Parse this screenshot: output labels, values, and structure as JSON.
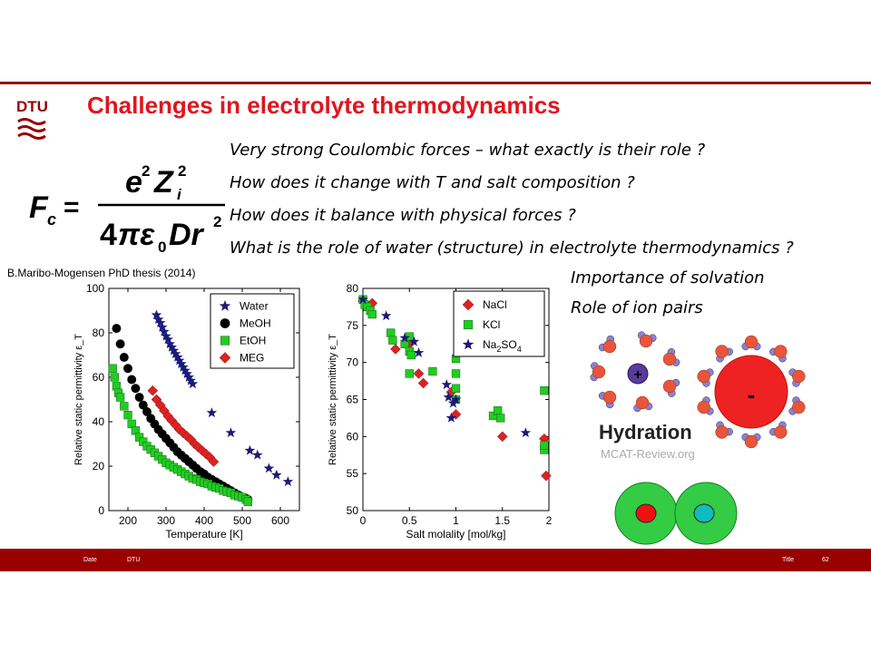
{
  "header": {
    "logo_text": "DTU",
    "title": "Challenges in electrolyte thermodynamics"
  },
  "questions": [
    "Very strong Coulombic forces – what exactly is their role  ?",
    "How does it change with T and salt composition ?",
    "How does it balance with physical forces ?",
    "What is the role of water (structure) in electrolyte thermodynamics ?"
  ],
  "source_note": "B.Maribo-Mogensen PhD thesis (2014)",
  "notes": [
    "Importance of solvation",
    "Role of ion pairs"
  ],
  "hydration": {
    "label": "Hydration",
    "watermark": "MCAT-Review.org",
    "plus": "+",
    "minus": "-",
    "colors": {
      "cation": "#5a3a9a",
      "anion": "#e22222",
      "oxygen": "#e8553a",
      "hydrogen": "#8a80d8"
    }
  },
  "ion_pair": {
    "colors": {
      "outer": "#33cc44",
      "ion1": "#ee1111",
      "ion2": "#11bbbb"
    }
  },
  "footer": {
    "date": "Date",
    "org": "DTU",
    "title": "Title",
    "page": "62"
  },
  "chart_data": [
    {
      "type": "scatter",
      "xlabel": "Temperature [K]",
      "ylabel": "Relative static permittivity ε_T",
      "xlim": [
        150,
        650
      ],
      "ylim": [
        0,
        100
      ],
      "xticks": [
        200,
        300,
        400,
        500,
        600
      ],
      "yticks": [
        0,
        20,
        40,
        60,
        80,
        100
      ],
      "legend_position": "top-right",
      "series": [
        {
          "name": "Water",
          "marker": "star",
          "color": "#1a1a7a",
          "x": [
            275,
            280,
            285,
            290,
            295,
            300,
            305,
            310,
            315,
            320,
            325,
            330,
            335,
            340,
            345,
            350,
            355,
            360,
            365,
            370,
            420,
            470,
            520,
            540,
            570,
            590,
            620
          ],
          "y": [
            88,
            86,
            84.5,
            82.5,
            80.5,
            78.5,
            77,
            75,
            73.5,
            72,
            70.5,
            69,
            67.5,
            66,
            64.5,
            63,
            61.5,
            60,
            58.5,
            57,
            44,
            35,
            27,
            25,
            19,
            16,
            13
          ]
        },
        {
          "name": "MeOH",
          "marker": "circle",
          "color": "#000000",
          "x": [
            170,
            180,
            190,
            200,
            210,
            220,
            230,
            240,
            250,
            260,
            270,
            280,
            290,
            300,
            310,
            320,
            330,
            340,
            350,
            360,
            370,
            380,
            390,
            400,
            410,
            420,
            430,
            440,
            450,
            460,
            470,
            480,
            490,
            500,
            510,
            515
          ],
          "y": [
            82,
            75,
            69,
            64,
            59,
            55,
            51,
            47.5,
            44.5,
            41.5,
            39,
            36.5,
            34.5,
            32.5,
            30.5,
            28.5,
            26.5,
            25,
            23.5,
            22,
            20.5,
            19,
            17.5,
            16.5,
            15,
            14,
            13,
            12,
            11,
            10,
            9,
            8,
            7,
            6,
            5.5,
            5
          ]
        },
        {
          "name": "EtOH",
          "marker": "square",
          "color": "#22cc22",
          "x": [
            160,
            165,
            170,
            175,
            180,
            190,
            200,
            210,
            220,
            230,
            240,
            250,
            260,
            270,
            280,
            290,
            300,
            310,
            320,
            330,
            340,
            350,
            360,
            370,
            380,
            390,
            400,
            410,
            420,
            430,
            440,
            450,
            460,
            470,
            480,
            490,
            500,
            510,
            515
          ],
          "y": [
            64,
            60,
            56,
            53,
            51,
            47,
            43,
            39,
            36,
            33,
            31,
            29,
            27.5,
            26,
            24.5,
            23,
            21.5,
            20.5,
            19.5,
            18.5,
            17.5,
            16.5,
            15.5,
            14.5,
            14,
            13,
            12.5,
            12,
            11,
            10.5,
            10,
            9,
            8.5,
            8,
            7,
            6.5,
            6,
            5,
            4
          ]
        },
        {
          "name": "MEG",
          "marker": "diamond",
          "color": "#dd2222",
          "x": [
            265,
            275,
            285,
            295,
            305,
            315,
            325,
            335,
            345,
            355,
            365,
            375,
            385,
            395,
            405,
            415,
            425
          ],
          "y": [
            54,
            50,
            47.5,
            45,
            42.5,
            40.5,
            38.5,
            36.5,
            35,
            33.5,
            32,
            30,
            28.5,
            27,
            25.5,
            24,
            22
          ]
        }
      ]
    },
    {
      "type": "scatter",
      "xlabel": "Salt molality [mol/kg]",
      "ylabel": "Relative static permittivity ε_T",
      "xlim": [
        0,
        2
      ],
      "ylim": [
        50,
        80
      ],
      "xticks": [
        0,
        0.5,
        1,
        1.5,
        2
      ],
      "yticks": [
        50,
        55,
        60,
        65,
        70,
        75,
        80
      ],
      "legend_position": "top-right",
      "series": [
        {
          "name": "NaCl",
          "marker": "diamond",
          "color": "#dd2222",
          "x": [
            0,
            0.1,
            0.35,
            0.5,
            0.6,
            0.65,
            0.95,
            1.0,
            1.5,
            1.95,
            1.97
          ],
          "y": [
            78.3,
            78,
            71.8,
            72.5,
            68.5,
            67.2,
            66,
            63,
            60,
            59.7,
            54.7
          ]
        },
        {
          "name": "KCl",
          "marker": "square",
          "color": "#22cc22",
          "x": [
            0,
            0.02,
            0.05,
            0.08,
            0.1,
            0.3,
            0.32,
            0.45,
            0.5,
            0.5,
            0.52,
            0.5,
            0.75,
            1.0,
            1.0,
            1.0,
            1.0,
            1.4,
            1.45,
            1.48,
            1.95,
            1.95,
            1.95
          ],
          "y": [
            78.5,
            77.8,
            77.5,
            77,
            76.5,
            74,
            73,
            72.5,
            73.5,
            71.5,
            71,
            68.5,
            68.8,
            70.5,
            68.5,
            66.5,
            65,
            62.8,
            63.5,
            62.5,
            66.2,
            58.2,
            58.8
          ]
        },
        {
          "name": "Na2SO4",
          "marker": "star",
          "color": "#1a1a7a",
          "x": [
            0,
            0.25,
            0.45,
            0.55,
            0.6,
            0.9,
            0.92,
            0.95,
            0.97,
            1.0,
            1.75
          ],
          "y": [
            78.5,
            76.3,
            73.3,
            72.8,
            71.3,
            67,
            65.3,
            62.5,
            64.5,
            65,
            60.5
          ]
        }
      ]
    }
  ]
}
